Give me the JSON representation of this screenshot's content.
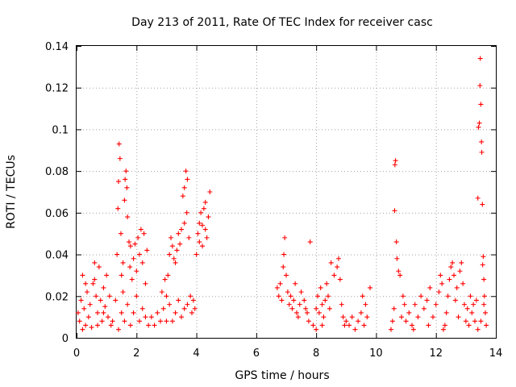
{
  "chart_data": {
    "type": "scatter",
    "title": "Day 213 of 2011, Rate Of TEC Index for receiver casc",
    "xlabel": "GPS time / hours",
    "ylabel": "ROTI / TECUs",
    "xlim": [
      0,
      14
    ],
    "ylim": [
      0,
      0.14
    ],
    "xticks": [
      0,
      2,
      4,
      6,
      8,
      10,
      12,
      14
    ],
    "xtick_labels": [
      "0",
      "2",
      "4",
      "6",
      "8",
      "10",
      "12",
      "14"
    ],
    "yticks": [
      0,
      0.02,
      0.04,
      0.06,
      0.08,
      0.1,
      0.12,
      0.14
    ],
    "ytick_labels": [
      "0",
      "0.02",
      "0.04",
      "0.06",
      "0.08",
      "0.1",
      "0.12",
      "0.14"
    ],
    "grid": true,
    "marker": "+",
    "series": [
      {
        "name": "ROTI",
        "color": "#ff0000",
        "points": [
          [
            0.05,
            0.012
          ],
          [
            0.1,
            0.008
          ],
          [
            0.15,
            0.018
          ],
          [
            0.2,
            0.03
          ],
          [
            0.25,
            0.014
          ],
          [
            0.3,
            0.006
          ],
          [
            0.35,
            0.022
          ],
          [
            0.4,
            0.01
          ],
          [
            0.45,
            0.016
          ],
          [
            0.5,
            0.005
          ],
          [
            0.55,
            0.026
          ],
          [
            0.6,
            0.036
          ],
          [
            0.65,
            0.02
          ],
          [
            0.7,
            0.012
          ],
          [
            0.75,
            0.034
          ],
          [
            0.8,
            0.018
          ],
          [
            0.85,
            0.008
          ],
          [
            0.9,
            0.024
          ],
          [
            0.95,
            0.015
          ],
          [
            1.0,
            0.03
          ],
          [
            1.05,
            0.01
          ],
          [
            1.1,
            0.02
          ],
          [
            1.15,
            0.006
          ],
          [
            0.3,
            0.026
          ],
          [
            0.6,
            0.028
          ],
          [
            0.9,
            0.012
          ],
          [
            1.3,
            0.018
          ],
          [
            1.35,
            0.04
          ],
          [
            1.38,
            0.062
          ],
          [
            1.4,
            0.075
          ],
          [
            1.42,
            0.093
          ],
          [
            1.45,
            0.086
          ],
          [
            1.48,
            0.05
          ],
          [
            1.5,
            0.03
          ],
          [
            1.55,
            0.022
          ],
          [
            1.6,
            0.066
          ],
          [
            1.62,
            0.076
          ],
          [
            1.65,
            0.08
          ],
          [
            1.68,
            0.072
          ],
          [
            1.7,
            0.058
          ],
          [
            1.75,
            0.046
          ],
          [
            1.78,
            0.034
          ],
          [
            1.8,
            0.044
          ],
          [
            1.85,
            0.028
          ],
          [
            1.9,
            0.038
          ],
          [
            1.95,
            0.045
          ],
          [
            2.0,
            0.032
          ],
          [
            2.05,
            0.048
          ],
          [
            2.1,
            0.04
          ],
          [
            2.15,
            0.052
          ],
          [
            2.2,
            0.036
          ],
          [
            2.25,
            0.05
          ],
          [
            2.3,
            0.026
          ],
          [
            2.35,
            0.042
          ],
          [
            1.5,
            0.012
          ],
          [
            1.6,
            0.008
          ],
          [
            1.7,
            0.016
          ],
          [
            1.8,
            0.006
          ],
          [
            1.9,
            0.012
          ],
          [
            2.0,
            0.02
          ],
          [
            2.1,
            0.008
          ],
          [
            2.2,
            0.014
          ],
          [
            2.3,
            0.01
          ],
          [
            2.4,
            0.006
          ],
          [
            1.4,
            0.004
          ],
          [
            1.55,
            0.036
          ],
          [
            2.5,
            0.01
          ],
          [
            2.6,
            0.006
          ],
          [
            2.7,
            0.012
          ],
          [
            2.8,
            0.008
          ],
          [
            2.9,
            0.014
          ],
          [
            2.85,
            0.022
          ],
          [
            2.95,
            0.028
          ],
          [
            3.0,
            0.02
          ],
          [
            3.05,
            0.03
          ],
          [
            3.1,
            0.016
          ],
          [
            3.1,
            0.04
          ],
          [
            3.15,
            0.048
          ],
          [
            3.2,
            0.044
          ],
          [
            3.3,
            0.036
          ],
          [
            3.4,
            0.05
          ],
          [
            3.45,
            0.045
          ],
          [
            3.5,
            0.052
          ],
          [
            3.6,
            0.055
          ],
          [
            3.55,
            0.068
          ],
          [
            3.6,
            0.072
          ],
          [
            3.65,
            0.08
          ],
          [
            3.7,
            0.076
          ],
          [
            3.68,
            0.06
          ],
          [
            3.75,
            0.048
          ],
          [
            3.2,
            0.008
          ],
          [
            3.3,
            0.012
          ],
          [
            3.4,
            0.018
          ],
          [
            3.5,
            0.01
          ],
          [
            3.6,
            0.014
          ],
          [
            3.7,
            0.016
          ],
          [
            3.8,
            0.02
          ],
          [
            3.85,
            0.012
          ],
          [
            3.9,
            0.018
          ],
          [
            3.95,
            0.014
          ],
          [
            4.0,
            0.04
          ],
          [
            4.05,
            0.05
          ],
          [
            4.1,
            0.055
          ],
          [
            4.15,
            0.06
          ],
          [
            4.2,
            0.054
          ],
          [
            4.25,
            0.062
          ],
          [
            4.3,
            0.052
          ],
          [
            4.35,
            0.048
          ],
          [
            4.4,
            0.058
          ],
          [
            4.45,
            0.07
          ],
          [
            4.3,
            0.065
          ],
          [
            4.1,
            0.046
          ],
          [
            4.2,
            0.044
          ],
          [
            3.35,
            0.042
          ],
          [
            3.25,
            0.038
          ],
          [
            3.0,
            0.008
          ],
          [
            6.7,
            0.024
          ],
          [
            6.75,
            0.02
          ],
          [
            6.8,
            0.026
          ],
          [
            6.85,
            0.018
          ],
          [
            6.9,
            0.034
          ],
          [
            6.92,
            0.04
          ],
          [
            6.95,
            0.048
          ],
          [
            7.0,
            0.03
          ],
          [
            7.05,
            0.022
          ],
          [
            7.1,
            0.016
          ],
          [
            7.15,
            0.02
          ],
          [
            7.2,
            0.014
          ],
          [
            7.25,
            0.018
          ],
          [
            7.3,
            0.026
          ],
          [
            7.35,
            0.012
          ],
          [
            7.4,
            0.01
          ],
          [
            7.45,
            0.016
          ],
          [
            7.5,
            0.022
          ],
          [
            7.6,
            0.018
          ],
          [
            7.65,
            0.014
          ],
          [
            7.7,
            0.012
          ],
          [
            7.75,
            0.008
          ],
          [
            7.8,
            0.046
          ],
          [
            7.9,
            0.006
          ],
          [
            8.0,
            0.014
          ],
          [
            8.05,
            0.02
          ],
          [
            8.1,
            0.012
          ],
          [
            8.15,
            0.024
          ],
          [
            8.2,
            0.016
          ],
          [
            8.25,
            0.01
          ],
          [
            8.3,
            0.018
          ],
          [
            8.35,
            0.026
          ],
          [
            8.4,
            0.02
          ],
          [
            8.45,
            0.014
          ],
          [
            8.5,
            0.036
          ],
          [
            8.6,
            0.03
          ],
          [
            8.7,
            0.034
          ],
          [
            8.75,
            0.038
          ],
          [
            8.8,
            0.028
          ],
          [
            8.85,
            0.016
          ],
          [
            8.9,
            0.01
          ],
          [
            8.95,
            0.006
          ],
          [
            9.0,
            0.008
          ],
          [
            9.1,
            0.006
          ],
          [
            9.2,
            0.01
          ],
          [
            9.3,
            0.004
          ],
          [
            9.4,
            0.008
          ],
          [
            9.5,
            0.012
          ],
          [
            9.55,
            0.02
          ],
          [
            9.6,
            0.006
          ],
          [
            9.65,
            0.016
          ],
          [
            9.7,
            0.01
          ],
          [
            8.0,
            0.004
          ],
          [
            8.2,
            0.006
          ],
          [
            9.8,
            0.024
          ],
          [
            10.5,
            0.004
          ],
          [
            10.55,
            0.008
          ],
          [
            10.6,
            0.014
          ],
          [
            10.62,
            0.061
          ],
          [
            10.63,
            0.083
          ],
          [
            10.65,
            0.085
          ],
          [
            10.68,
            0.046
          ],
          [
            10.7,
            0.038
          ],
          [
            10.75,
            0.032
          ],
          [
            10.8,
            0.03
          ],
          [
            10.85,
            0.01
          ],
          [
            10.9,
            0.02
          ],
          [
            10.95,
            0.016
          ],
          [
            11.0,
            0.008
          ],
          [
            11.1,
            0.012
          ],
          [
            11.2,
            0.006
          ],
          [
            11.3,
            0.016
          ],
          [
            11.4,
            0.01
          ],
          [
            11.5,
            0.02
          ],
          [
            11.6,
            0.014
          ],
          [
            11.7,
            0.018
          ],
          [
            11.8,
            0.024
          ],
          [
            11.9,
            0.01
          ],
          [
            12.0,
            0.016
          ],
          [
            12.1,
            0.022
          ],
          [
            12.15,
            0.03
          ],
          [
            12.2,
            0.026
          ],
          [
            12.3,
            0.006
          ],
          [
            12.35,
            0.012
          ],
          [
            12.4,
            0.02
          ],
          [
            12.45,
            0.028
          ],
          [
            12.5,
            0.034
          ],
          [
            12.55,
            0.036
          ],
          [
            12.6,
            0.03
          ],
          [
            12.65,
            0.018
          ],
          [
            12.7,
            0.024
          ],
          [
            12.75,
            0.01
          ],
          [
            12.8,
            0.032
          ],
          [
            12.85,
            0.036
          ],
          [
            12.9,
            0.026
          ],
          [
            12.95,
            0.016
          ],
          [
            13.0,
            0.008
          ],
          [
            13.05,
            0.014
          ],
          [
            13.1,
            0.006
          ],
          [
            13.15,
            0.02
          ],
          [
            13.2,
            0.012
          ],
          [
            13.25,
            0.016
          ],
          [
            13.3,
            0.008
          ],
          [
            13.35,
            0.018
          ],
          [
            13.4,
            0.067
          ],
          [
            13.42,
            0.101
          ],
          [
            13.45,
            0.103
          ],
          [
            13.47,
            0.121
          ],
          [
            13.48,
            0.134
          ],
          [
            13.5,
            0.112
          ],
          [
            13.52,
            0.094
          ],
          [
            13.53,
            0.089
          ],
          [
            13.55,
            0.064
          ],
          [
            13.56,
            0.035
          ],
          [
            13.58,
            0.039
          ],
          [
            13.6,
            0.028
          ],
          [
            13.62,
            0.02
          ],
          [
            13.65,
            0.012
          ],
          [
            13.68,
            0.006
          ],
          [
            13.4,
            0.004
          ],
          [
            13.5,
            0.008
          ],
          [
            13.6,
            0.016
          ],
          [
            11.25,
            0.004
          ],
          [
            11.75,
            0.006
          ],
          [
            12.25,
            0.004
          ],
          [
            0.2,
            0.004
          ],
          [
            0.7,
            0.006
          ],
          [
            1.2,
            0.008
          ]
        ]
      }
    ]
  }
}
